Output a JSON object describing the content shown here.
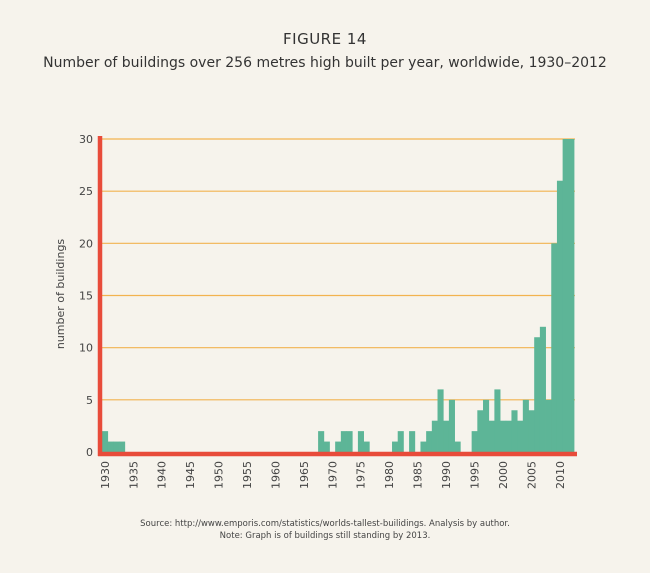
{
  "figure_label": "FIGURE 14",
  "title": "Number of buildings over 256 metres high built per year, worldwide, 1930–2012",
  "source_note": "Source: http://www.emporis.com/statistics/worlds-tallest-builidings. Analysis by author.",
  "standing_note": "Note: Graph is of buildings still standing by 2013.",
  "colors": {
    "bars": "#5db597",
    "gridlines": "#f2b350",
    "axes": "#e84b3a",
    "background": "#f6f3ec"
  },
  "chart_data": {
    "type": "bar",
    "title": "Number of buildings over 256 metres high built per year, worldwide, 1930–2012",
    "xlabel": "",
    "ylabel": "number of buildings",
    "ylim": [
      0,
      30
    ],
    "xlim": [
      1930,
      2012
    ],
    "yticks": [
      0,
      5,
      10,
      15,
      20,
      25,
      30
    ],
    "xticks": [
      1930,
      1935,
      1940,
      1945,
      1950,
      1955,
      1960,
      1965,
      1970,
      1975,
      1980,
      1985,
      1990,
      1995,
      2000,
      2005,
      2010
    ],
    "grid": true,
    "years": [
      1930,
      1931,
      1932,
      1933,
      1934,
      1935,
      1936,
      1937,
      1938,
      1939,
      1940,
      1941,
      1942,
      1943,
      1944,
      1945,
      1946,
      1947,
      1948,
      1949,
      1950,
      1951,
      1952,
      1953,
      1954,
      1955,
      1956,
      1957,
      1958,
      1959,
      1960,
      1961,
      1962,
      1963,
      1964,
      1965,
      1966,
      1967,
      1968,
      1969,
      1970,
      1971,
      1972,
      1973,
      1974,
      1975,
      1976,
      1977,
      1978,
      1979,
      1980,
      1981,
      1982,
      1983,
      1984,
      1985,
      1986,
      1987,
      1988,
      1989,
      1990,
      1991,
      1992,
      1993,
      1994,
      1995,
      1996,
      1997,
      1998,
      1999,
      2000,
      2001,
      2002,
      2003,
      2004,
      2005,
      2006,
      2007,
      2008,
      2009,
      2010,
      2011,
      2012
    ],
    "values": [
      2,
      1,
      1,
      1,
      0,
      0,
      0,
      0,
      0,
      0,
      0,
      0,
      0,
      0,
      0,
      0,
      0,
      0,
      0,
      0,
      0,
      0,
      0,
      0,
      0,
      0,
      0,
      0,
      0,
      0,
      0,
      0,
      0,
      0,
      0,
      0,
      0,
      0,
      2,
      1,
      0,
      1,
      2,
      2,
      0,
      2,
      1,
      0,
      0,
      0,
      0,
      1,
      2,
      0,
      2,
      0,
      1,
      2,
      3,
      6,
      3,
      5,
      1,
      0,
      0,
      2,
      4,
      5,
      3,
      6,
      3,
      3,
      4,
      3,
      5,
      4,
      11,
      12,
      5,
      20,
      26,
      30,
      30
    ]
  }
}
